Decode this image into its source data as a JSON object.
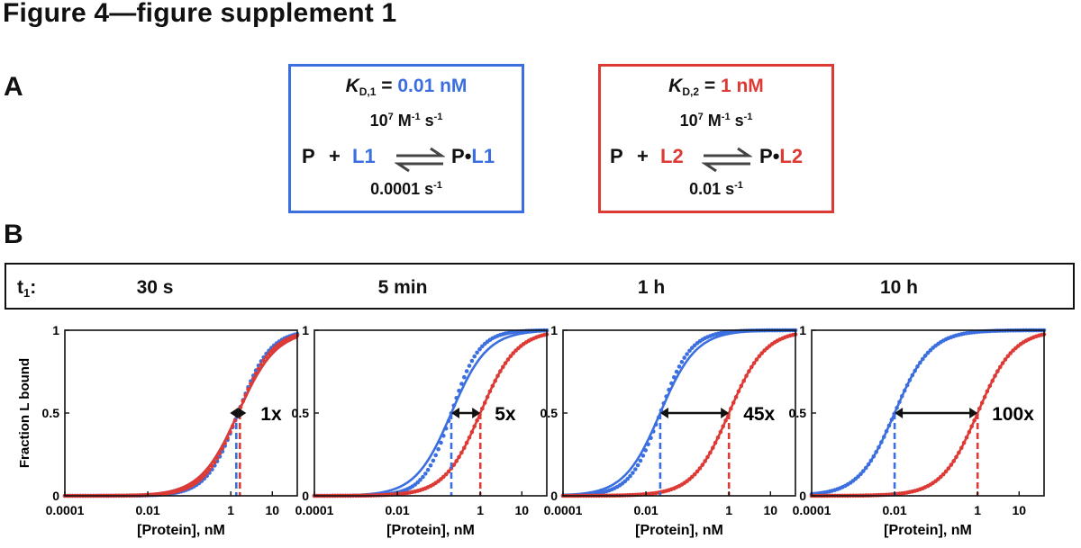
{
  "figure_title": "Figure 4—figure supplement 1",
  "panel_a_label": "A",
  "panel_b_label": "B",
  "colors": {
    "blue": "#3b6fe0",
    "red": "#dd3a36",
    "black": "#111111"
  },
  "scheme1": {
    "kd_letter": "K",
    "kd_sub": "D,1",
    "kd_eq": " = ",
    "kd_value": "0.01 nM",
    "kon_base": "10",
    "kon_exp": "7",
    "kon_units_a": " M",
    "kon_units_a_exp": "-1",
    "kon_units_b": " s",
    "kon_units_b_exp": "-1",
    "koff_value": "0.0001 s",
    "koff_exp": "-1",
    "reactant_p": "P",
    "plus": "+",
    "ligand": "L1",
    "product_p": "P",
    "dot": "•",
    "product_l": "L1"
  },
  "scheme2": {
    "kd_letter": "K",
    "kd_sub": "D,2",
    "kd_eq": " = ",
    "kd_value": "1 nM",
    "kon_base": "10",
    "kon_exp": "7",
    "kon_units_a": " M",
    "kon_units_a_exp": "-1",
    "kon_units_b": " s",
    "kon_units_b_exp": "-1",
    "koff_value": "0.01 s",
    "koff_exp": "-1",
    "reactant_p": "P",
    "plus": "+",
    "ligand": "L2",
    "product_p": "P",
    "dot": "•",
    "product_l": "L2"
  },
  "time_bar": {
    "label": "t",
    "label_sub": "1",
    "label_colon": ":",
    "times": [
      "30 s",
      "5 min",
      "1 h",
      "10 h"
    ]
  },
  "chart_data": [
    {
      "type": "line",
      "panel_time": "30 s",
      "ylabel": "Fraction L bound",
      "xlabel": "[Protein], nM",
      "xscale": "log",
      "xlim": [
        0.0001,
        40
      ],
      "ylim": [
        0,
        1
      ],
      "xticks": [
        "0.0001",
        "0.01",
        "1",
        "10"
      ],
      "yticks": [
        "0",
        "0.5",
        "1"
      ],
      "series": [
        {
          "color": "blue",
          "style": "dots",
          "ec50": 1.5,
          "hill": 1.15
        },
        {
          "color": "blue",
          "style": "line",
          "ec50": 1.5,
          "hill": 0.95
        },
        {
          "color": "red",
          "style": "dots",
          "ec50": 1.5,
          "hill": 1.05
        },
        {
          "color": "red",
          "style": "line",
          "ec50": 1.5,
          "hill": 0.95
        }
      ],
      "midpoints": {
        "blue": 1.5,
        "red": 1.5
      },
      "fold_label": "1x"
    },
    {
      "type": "line",
      "panel_time": "5 min",
      "ylabel": "",
      "xlabel": "[Protein], nM",
      "xscale": "log",
      "xlim": [
        0.0001,
        40
      ],
      "ylim": [
        0,
        1
      ],
      "xticks": [
        "0.0001",
        "0.01",
        "1",
        "10"
      ],
      "yticks": [
        "0",
        "0.5",
        "1"
      ],
      "series": [
        {
          "color": "blue",
          "style": "dots",
          "ec50": 0.2,
          "hill": 1.3
        },
        {
          "color": "blue",
          "style": "line",
          "ec50": 0.2,
          "hill": 1.0
        },
        {
          "color": "red",
          "style": "dots",
          "ec50": 1.0,
          "hill": 1.0
        },
        {
          "color": "red",
          "style": "line",
          "ec50": 1.0,
          "hill": 1.0
        }
      ],
      "midpoints": {
        "blue": 0.2,
        "red": 1.0
      },
      "fold_label": "5x"
    },
    {
      "type": "line",
      "panel_time": "1 h",
      "ylabel": "",
      "xlabel": "[Protein], nM",
      "xscale": "log",
      "xlim": [
        0.0001,
        40
      ],
      "ylim": [
        0,
        1
      ],
      "xticks": [
        "0.0001",
        "0.01",
        "1",
        "10"
      ],
      "yticks": [
        "0",
        "0.5",
        "1"
      ],
      "series": [
        {
          "color": "blue",
          "style": "dots",
          "ec50": 0.022,
          "hill": 1.2
        },
        {
          "color": "blue",
          "style": "line",
          "ec50": 0.022,
          "hill": 1.0
        },
        {
          "color": "red",
          "style": "dots",
          "ec50": 1.0,
          "hill": 1.0
        },
        {
          "color": "red",
          "style": "line",
          "ec50": 1.0,
          "hill": 1.0
        }
      ],
      "midpoints": {
        "blue": 0.022,
        "red": 1.0
      },
      "fold_label": "45x"
    },
    {
      "type": "line",
      "panel_time": "10 h",
      "ylabel": "",
      "xlabel": "[Protein], nM",
      "xscale": "log",
      "xlim": [
        0.0001,
        40
      ],
      "ylim": [
        0,
        1
      ],
      "xticks": [
        "0.0001",
        "0.01",
        "1",
        "10"
      ],
      "yticks": [
        "0",
        "0.5",
        "1"
      ],
      "series": [
        {
          "color": "blue",
          "style": "dots",
          "ec50": 0.01,
          "hill": 1.0
        },
        {
          "color": "blue",
          "style": "line",
          "ec50": 0.01,
          "hill": 1.0
        },
        {
          "color": "red",
          "style": "dots",
          "ec50": 1.0,
          "hill": 1.0
        },
        {
          "color": "red",
          "style": "line",
          "ec50": 1.0,
          "hill": 1.0
        }
      ],
      "midpoints": {
        "blue": 0.01,
        "red": 1.0
      },
      "fold_label": "100x"
    }
  ]
}
